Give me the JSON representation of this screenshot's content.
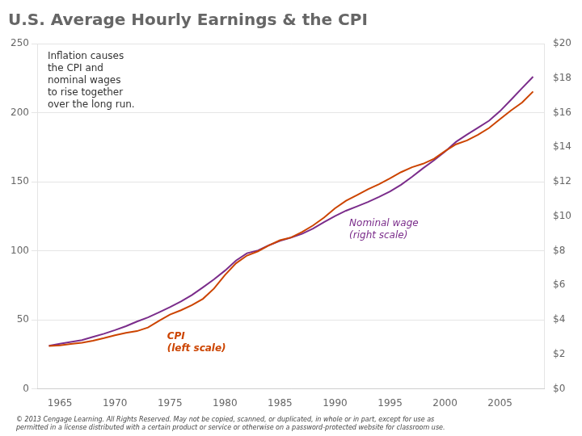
{
  "chart_data": {
    "type": "line",
    "title": "U.S. Average Hourly Earnings & the CPI",
    "x": [
      1964,
      1965,
      1966,
      1967,
      1968,
      1969,
      1970,
      1971,
      1972,
      1973,
      1974,
      1975,
      1976,
      1977,
      1978,
      1979,
      1980,
      1981,
      1982,
      1983,
      1984,
      1985,
      1986,
      1987,
      1988,
      1989,
      1990,
      1991,
      1992,
      1993,
      1994,
      1995,
      1996,
      1997,
      1998,
      1999,
      2000,
      2001,
      2002,
      2003,
      2004,
      2005,
      2006,
      2007,
      2008
    ],
    "series": [
      {
        "name": "CPI\n(left scale)",
        "color": "#cc4400",
        "values": [
          31.0,
          31.5,
          32.5,
          33.4,
          34.8,
          36.7,
          38.8,
          40.5,
          41.8,
          44.4,
          49.3,
          53.8,
          56.9,
          60.6,
          65.2,
          72.6,
          82.4,
          90.9,
          96.5,
          99.6,
          103.9,
          107.6,
          109.6,
          113.6,
          118.3,
          124.0,
          130.7,
          136.2,
          140.3,
          144.5,
          148.2,
          152.4,
          156.9,
          160.5,
          163.0,
          166.6,
          172.2,
          177.1,
          179.9,
          184.0,
          188.9,
          195.3,
          201.6,
          207.3,
          215.3
        ]
      },
      {
        "name": "Nominal wage\n(right scale)",
        "color": "#7b2d8b",
        "axis": "y2",
        "values": [
          2.5,
          2.61,
          2.72,
          2.82,
          3.01,
          3.19,
          3.4,
          3.63,
          3.9,
          4.14,
          4.43,
          4.73,
          5.06,
          5.44,
          5.88,
          6.34,
          6.85,
          7.43,
          7.86,
          8.02,
          8.32,
          8.57,
          8.76,
          8.98,
          9.28,
          9.66,
          10.01,
          10.32,
          10.57,
          10.83,
          11.12,
          11.43,
          11.82,
          12.28,
          12.78,
          13.24,
          13.74,
          14.31,
          14.73,
          15.13,
          15.53,
          16.09,
          16.75,
          17.42,
          18.08
        ]
      }
    ],
    "annotations": [
      "Inflation causes\nthe CPI and\nnominal wages\nto rise together\nover the long run.",
      "© 2013 Cengage Learning. All Rights Reserved. May not be copied, scanned, or duplicated, in whole or in part, except for use as\npermitted in a license distributed with a certain product or service or otherwise on a password-protected website for classroom use."
    ],
    "xlim": [
      1963,
      2009
    ],
    "xticks": [
      1965,
      1970,
      1975,
      1980,
      1985,
      1990,
      1995,
      2000,
      2005
    ],
    "ylim": [
      0,
      250
    ],
    "yticks": [
      0,
      50,
      100,
      150,
      200,
      250
    ],
    "y2lim": [
      0,
      20
    ],
    "y2ticks": [
      {
        "value": 0,
        "label": "$0"
      },
      {
        "value": 2,
        "label": "$2"
      },
      {
        "value": 4,
        "label": "$4"
      },
      {
        "value": 6,
        "label": "$6"
      },
      {
        "value": 8,
        "label": "$8"
      },
      {
        "value": 10,
        "label": "$10"
      },
      {
        "value": 12,
        "label": "$12"
      },
      {
        "value": 14,
        "label": "$14"
      },
      {
        "value": 16,
        "label": "$16"
      },
      {
        "value": 18,
        "label": "$18"
      },
      {
        "value": 20,
        "label": "$20"
      }
    ],
    "grid": true
  }
}
